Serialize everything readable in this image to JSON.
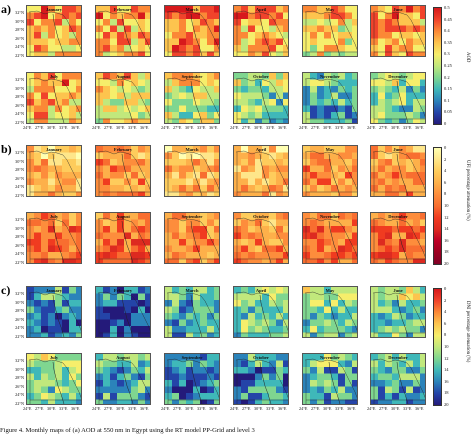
{
  "panels": [
    {
      "label": "a)",
      "cbar_title": "AOD",
      "ticks": [
        "0.5",
        "0.45",
        "0.4",
        "0.35",
        "0.3",
        "0.25",
        "0.2",
        "0.15",
        "0.1",
        "0.05",
        "0"
      ],
      "colors": [
        "#d7191c",
        "#f0432b",
        "#fb8836",
        "#fdc44e",
        "#f6ee6b",
        "#c1e87c",
        "#7fd690",
        "#3fb8b9",
        "#2b83ba",
        "#2444a8",
        "#241a7a"
      ],
      "months": [
        "January",
        "February",
        "March",
        "April",
        "May",
        "June",
        "July",
        "August",
        "September",
        "October",
        "November",
        "December"
      ],
      "lat_top": [
        "32°N",
        "30°N",
        "28°N",
        "26°N",
        "24°N",
        "22°N"
      ],
      "lat_bottom": [
        "32°N",
        "30°N",
        "28°N",
        "26°N",
        "24°N",
        "22°N"
      ],
      "show_lon": true
    },
    {
      "label": "b)",
      "cbar_title": "UFI percentage attenuation (%)",
      "ticks": [
        "0",
        "2",
        "4",
        "6",
        "8",
        "10",
        "12",
        "14",
        "16",
        "18",
        "20"
      ],
      "colors": [
        "#ffffb2",
        "#fee68a",
        "#fecc5c",
        "#fdb04a",
        "#fd8d3c",
        "#f86e30",
        "#f03b20",
        "#dd2a20",
        "#bd0026",
        "#9b0021",
        "#800026"
      ],
      "months": [
        "January",
        "February",
        "March",
        "April",
        "May",
        "June",
        "July",
        "August",
        "September",
        "October",
        "November",
        "December"
      ],
      "lat_top": [
        "32°N",
        "30°N",
        "28°N",
        "26°N",
        "24°N",
        "22°N"
      ],
      "lat_bottom": [
        "32°N",
        "30°N",
        "28°N",
        "26°N",
        "24°N",
        "22°N"
      ],
      "show_lon": false
    },
    {
      "label": "c)",
      "cbar_title": "DNI percentage attenuation (%)",
      "ticks": [
        "0",
        "2",
        "4",
        "6",
        "8",
        "10",
        "12",
        "14",
        "16",
        "18",
        "20"
      ],
      "colors": [
        "#d7191c",
        "#f0432b",
        "#fb8836",
        "#fdc44e",
        "#f6ee6b",
        "#c1e87c",
        "#7fd690",
        "#3fb8b9",
        "#2b83ba",
        "#2444a8",
        "#241a7a"
      ],
      "months": [
        "January",
        "February",
        "March",
        "April",
        "May",
        "June",
        "July",
        "August",
        "September",
        "October",
        "November",
        "December"
      ],
      "lat_top": [
        "32°N",
        "30°N",
        "28°N",
        "26°N",
        "24°N",
        "22°N"
      ],
      "lat_bottom": [
        "32°N",
        "30°N",
        "28°N",
        "26°N",
        "24°N",
        "22°N"
      ],
      "show_lon": true
    }
  ],
  "lon_labels": [
    "24°E",
    "27°E",
    "30°E",
    "33°E",
    "36°E"
  ],
  "caption": "Figure 4. Monthly maps of (a) AOD at 550 nm in Egypt using the RT model PP-Grid and level 3"
}
